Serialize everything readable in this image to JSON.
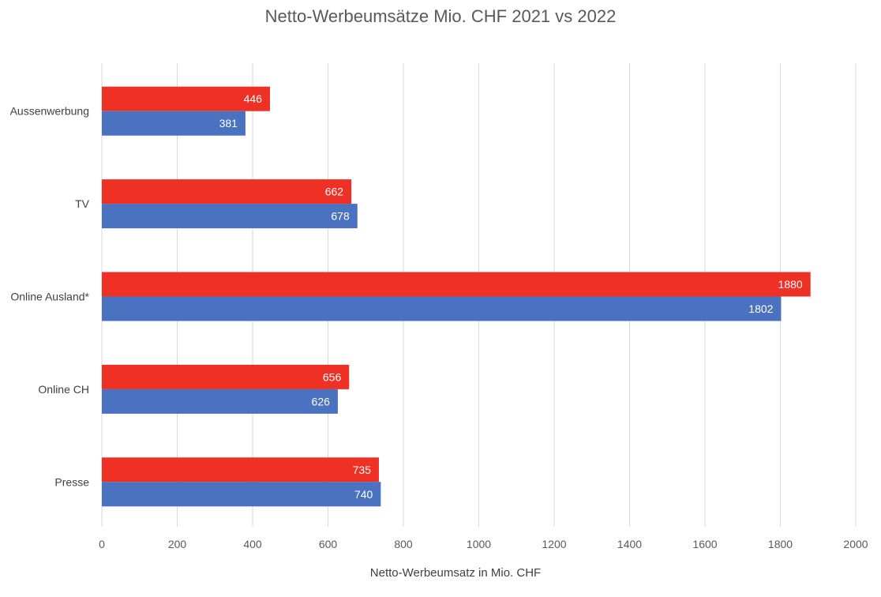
{
  "chart_data": {
    "type": "bar",
    "orientation": "horizontal",
    "title": "Netto-Werbeumsätze Mio. CHF  2021 vs 2022",
    "xlabel": "Netto-Werbeumsatz in Mio. CHF",
    "ylabel": "",
    "xlim": [
      0,
      2000
    ],
    "xticks": [
      0,
      200,
      400,
      600,
      800,
      1000,
      1200,
      1400,
      1600,
      1800,
      2000
    ],
    "grid": true,
    "legend": "none",
    "categories": [
      "Aussenwerbung",
      "TV",
      "Online Ausland*",
      "Online CH",
      "Presse"
    ],
    "series": [
      {
        "color": "#EE3124",
        "values": [
          446,
          662,
          1880,
          656,
          735
        ]
      },
      {
        "color": "#4A72C0",
        "values": [
          381,
          678,
          1802,
          626,
          740
        ]
      }
    ]
  }
}
